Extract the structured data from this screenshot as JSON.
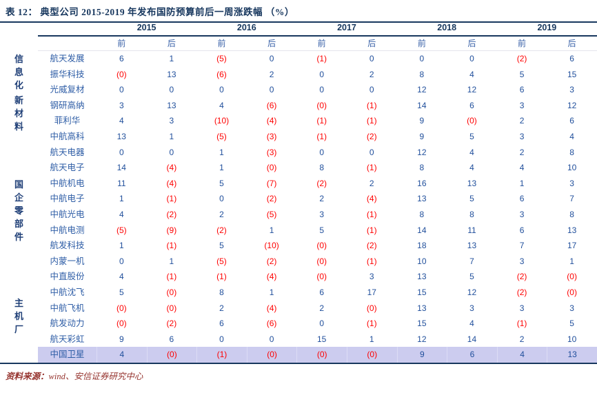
{
  "title": "表 12： 典型公司 2015-2019 年发布国防预算前后一周涨跌幅 （%）",
  "footer": {
    "label": "资料来源：",
    "text": "wind、安信证券研究中心"
  },
  "colors": {
    "accent_navy": "#17375E",
    "positive_value": "#1F4E9B",
    "negative_value": "#FE0000",
    "highlight_row_bg": "#CCCCEF",
    "footer_text": "#96342F"
  },
  "table": {
    "years": [
      "2015",
      "2016",
      "2017",
      "2018",
      "2019"
    ],
    "sub_headers": [
      "前",
      "后"
    ],
    "groups": [
      {
        "label": "信息化",
        "span_start": 0,
        "span_len": 2
      },
      {
        "label": "新材料",
        "span_start": 2,
        "span_len": 5
      },
      {
        "label": "国企零部件",
        "span_start": 7,
        "span_len": 8
      },
      {
        "label": "主机厂",
        "span_start": 15,
        "span_len": 5
      }
    ],
    "rows": [
      {
        "company": "航天发展",
        "values": [
          "6",
          "1",
          "(5)",
          "0",
          "(1)",
          "0",
          "0",
          "0",
          "(2)",
          "6"
        ]
      },
      {
        "company": "振华科技",
        "values": [
          "(0)",
          "13",
          "(6)",
          "2",
          "0",
          "2",
          "8",
          "4",
          "5",
          "15"
        ]
      },
      {
        "company": "光威复材",
        "values": [
          "0",
          "0",
          "0",
          "0",
          "0",
          "0",
          "12",
          "12",
          "6",
          "3"
        ]
      },
      {
        "company": "钢研高纳",
        "values": [
          "3",
          "13",
          "4",
          "(6)",
          "(0)",
          "(1)",
          "14",
          "6",
          "3",
          "12"
        ]
      },
      {
        "company": "菲利华",
        "values": [
          "4",
          "3",
          "(10)",
          "(4)",
          "(1)",
          "(1)",
          "9",
          "(0)",
          "2",
          "6"
        ]
      },
      {
        "company": "中航高科",
        "values": [
          "13",
          "1",
          "(5)",
          "(3)",
          "(1)",
          "(2)",
          "9",
          "5",
          "3",
          "4"
        ]
      },
      {
        "company": "航天电器",
        "values": [
          "0",
          "0",
          "1",
          "(3)",
          "0",
          "0",
          "12",
          "4",
          "2",
          "8"
        ]
      },
      {
        "company": "航天电子",
        "values": [
          "14",
          "(4)",
          "1",
          "(0)",
          "8",
          "(1)",
          "8",
          "4",
          "4",
          "10"
        ]
      },
      {
        "company": "中航机电",
        "values": [
          "11",
          "(4)",
          "5",
          "(7)",
          "(2)",
          "2",
          "16",
          "13",
          "1",
          "3"
        ]
      },
      {
        "company": "中航电子",
        "values": [
          "1",
          "(1)",
          "0",
          "(2)",
          "2",
          "(4)",
          "13",
          "5",
          "6",
          "7"
        ]
      },
      {
        "company": "中航光电",
        "values": [
          "4",
          "(2)",
          "2",
          "(5)",
          "3",
          "(1)",
          "8",
          "8",
          "3",
          "8"
        ]
      },
      {
        "company": "中航电测",
        "values": [
          "(5)",
          "(9)",
          "(2)",
          "1",
          "5",
          "(1)",
          "14",
          "11",
          "6",
          "13"
        ]
      },
      {
        "company": "航发科技",
        "values": [
          "1",
          "(1)",
          "5",
          "(10)",
          "(0)",
          "(2)",
          "18",
          "13",
          "7",
          "17"
        ]
      },
      {
        "company": "内蒙一机",
        "values": [
          "0",
          "1",
          "(5)",
          "(2)",
          "(0)",
          "(1)",
          "10",
          "7",
          "3",
          "1"
        ]
      },
      {
        "company": "中直股份",
        "values": [
          "4",
          "(1)",
          "(1)",
          "(4)",
          "(0)",
          "3",
          "13",
          "5",
          "(2)",
          "(0)"
        ]
      },
      {
        "company": "中航沈飞",
        "values": [
          "5",
          "(0)",
          "8",
          "1",
          "6",
          "17",
          "15",
          "12",
          "(2)",
          "(0)"
        ]
      },
      {
        "company": "中航飞机",
        "values": [
          "(0)",
          "(0)",
          "2",
          "(4)",
          "2",
          "(0)",
          "13",
          "3",
          "3",
          "3"
        ]
      },
      {
        "company": "航发动力",
        "values": [
          "(0)",
          "(2)",
          "6",
          "(6)",
          "0",
          "(1)",
          "15",
          "4",
          "(1)",
          "5"
        ]
      },
      {
        "company": "航天彩虹",
        "values": [
          "9",
          "6",
          "0",
          "0",
          "15",
          "1",
          "12",
          "14",
          "2",
          "10"
        ]
      },
      {
        "company": "中国卫星",
        "values": [
          "4",
          "(0)",
          "(1)",
          "(0)",
          "(0)",
          "(0)",
          "9",
          "6",
          "4",
          "13"
        ],
        "highlight": true
      }
    ]
  }
}
